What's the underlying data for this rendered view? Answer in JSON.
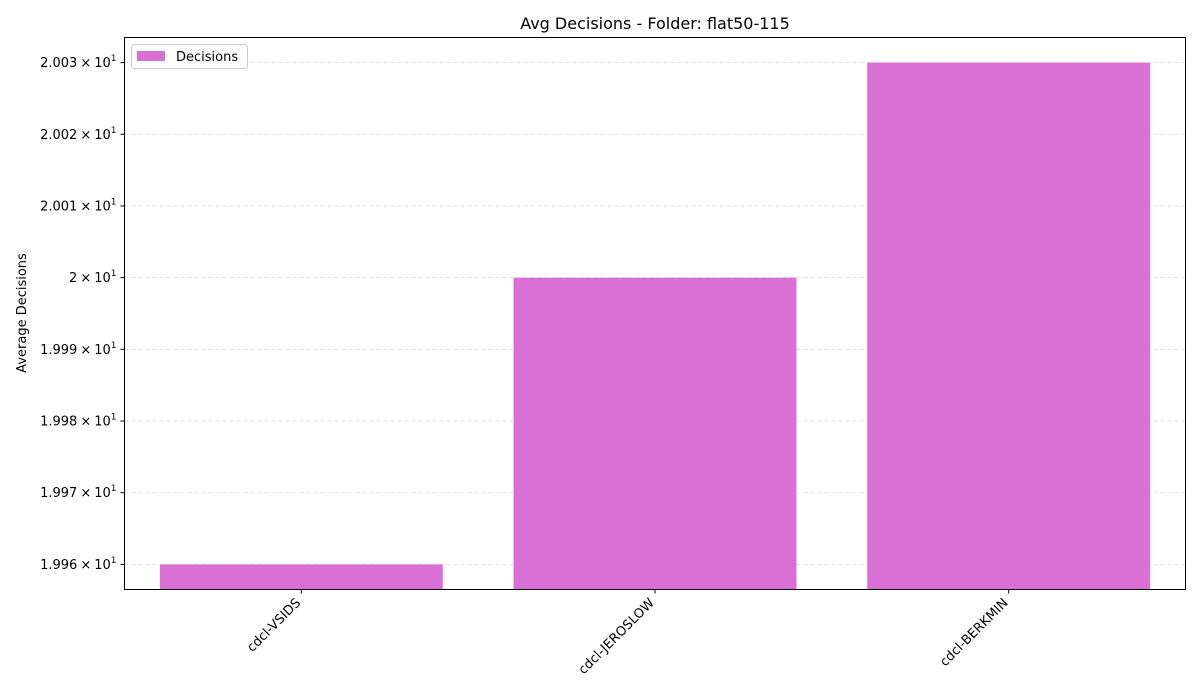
{
  "chart_data": {
    "type": "bar",
    "title": "Avg Decisions - Folder: flat50-115",
    "xlabel": "",
    "ylabel": "Average Decisions",
    "categories": [
      "cdcl-VSIDS",
      "cdcl-JEROSLOW",
      "cdcl-BERKMIN"
    ],
    "series": [
      {
        "name": "Decisions",
        "color": "#da70d6",
        "values": [
          19.96,
          20.0,
          20.03
        ]
      }
    ],
    "ylim": [
      19.9565,
      20.0335
    ],
    "yticks": [
      {
        "value": 19.96,
        "mantissa": "1.996",
        "exponent": "1"
      },
      {
        "value": 19.97,
        "mantissa": "1.997",
        "exponent": "1"
      },
      {
        "value": 19.98,
        "mantissa": "1.998",
        "exponent": "1"
      },
      {
        "value": 19.99,
        "mantissa": "1.999",
        "exponent": "1"
      },
      {
        "value": 20.0,
        "mantissa": "2",
        "exponent": "1"
      },
      {
        "value": 20.01,
        "mantissa": "2.001",
        "exponent": "1"
      },
      {
        "value": 20.02,
        "mantissa": "2.002",
        "exponent": "1"
      },
      {
        "value": 20.03,
        "mantissa": "2.003",
        "exponent": "1"
      }
    ],
    "tick_base": "10",
    "tick_times": "×",
    "grid": true,
    "legend_position": "top-left"
  }
}
